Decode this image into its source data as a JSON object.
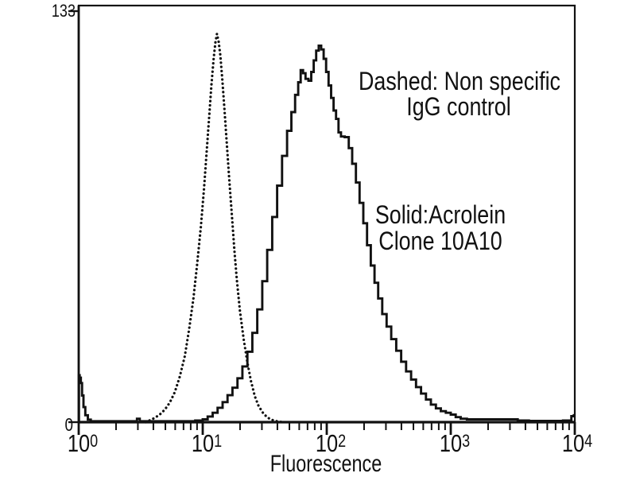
{
  "figure": {
    "background": "#ffffff",
    "ink": "#111111"
  },
  "chart_data": {
    "type": "line",
    "subtype": "flow-cytometry-histogram",
    "title": "",
    "xlabel": "Fluorescence",
    "ylabel": "",
    "x_scale": "log10",
    "x_range_exponents": [
      0,
      4
    ],
    "ylim": [
      0,
      133
    ],
    "grid": false,
    "legend_position": "none",
    "y_ticks": [
      "133",
      "0"
    ],
    "x_ticks": [
      {
        "base": "10",
        "exp": "0"
      },
      {
        "base": "10",
        "exp": "1"
      },
      {
        "base": "10",
        "exp": "2"
      },
      {
        "base": "10",
        "exp": "3"
      },
      {
        "base": "10",
        "exp": "4"
      }
    ],
    "annotations": [
      {
        "id": "dashed-note",
        "lines": [
          "Dashed: Non specific",
          "IgG control"
        ]
      },
      {
        "id": "solid-note",
        "lines": [
          "Solid:Acrolein",
          "Clone 10A10"
        ]
      }
    ],
    "series": [
      {
        "name": "Non specific IgG control",
        "style": "dotted",
        "color": "#111111",
        "peak_x_log10": 1.115,
        "peak_count": 124,
        "points": [
          [
            0.54,
            0.0
          ],
          [
            0.575,
            0.6
          ],
          [
            0.615,
            1.4
          ],
          [
            0.655,
            2.5
          ],
          [
            0.695,
            4.0
          ],
          [
            0.735,
            6.3
          ],
          [
            0.775,
            9.6
          ],
          [
            0.815,
            14.5
          ],
          [
            0.855,
            21.0
          ],
          [
            0.89,
            29.5
          ],
          [
            0.925,
            39.5
          ],
          [
            0.955,
            50.5
          ],
          [
            0.985,
            62.5
          ],
          [
            1.01,
            74.5
          ],
          [
            1.032,
            86.5
          ],
          [
            1.052,
            97.5
          ],
          [
            1.07,
            107.5
          ],
          [
            1.088,
            116.0
          ],
          [
            1.103,
            121.5
          ],
          [
            1.115,
            124.0
          ],
          [
            1.128,
            121.5
          ],
          [
            1.142,
            117.0
          ],
          [
            1.158,
            109.5
          ],
          [
            1.175,
            100.0
          ],
          [
            1.195,
            88.5
          ],
          [
            1.215,
            77.0
          ],
          [
            1.235,
            66.0
          ],
          [
            1.255,
            55.0
          ],
          [
            1.275,
            45.5
          ],
          [
            1.3,
            35.5
          ],
          [
            1.33,
            26.5
          ],
          [
            1.36,
            19.0
          ],
          [
            1.39,
            13.0
          ],
          [
            1.42,
            8.3
          ],
          [
            1.45,
            5.2
          ],
          [
            1.485,
            3.0
          ],
          [
            1.52,
            1.5
          ],
          [
            1.56,
            0.7
          ],
          [
            1.605,
            0.2
          ],
          [
            1.65,
            0.0
          ]
        ]
      },
      {
        "name": "Acrolein Clone 10A10",
        "style": "solid",
        "color": "#111111",
        "peak_x_log10": 1.945,
        "peak_count": 120,
        "points": [
          [
            0.0,
            0.0
          ],
          [
            0.004,
            15.0
          ],
          [
            0.012,
            14.2
          ],
          [
            0.022,
            12.5
          ],
          [
            0.032,
            8.5
          ],
          [
            0.045,
            4.8
          ],
          [
            0.062,
            2.2
          ],
          [
            0.085,
            0.8
          ],
          [
            0.11,
            0.3
          ],
          [
            0.3,
            0.3
          ],
          [
            0.46,
            0.3
          ],
          [
            0.48,
            1.1
          ],
          [
            0.505,
            0.3
          ],
          [
            0.9,
            0.3
          ],
          [
            0.98,
            0.5
          ],
          [
            1.02,
            0.9
          ],
          [
            1.06,
            1.8
          ],
          [
            1.1,
            3.0
          ],
          [
            1.14,
            4.6
          ],
          [
            1.18,
            6.4
          ],
          [
            1.22,
            8.6
          ],
          [
            1.26,
            11.0
          ],
          [
            1.3,
            14.0
          ],
          [
            1.34,
            17.8
          ],
          [
            1.38,
            22.5
          ],
          [
            1.42,
            28.5
          ],
          [
            1.46,
            36.0
          ],
          [
            1.5,
            45.0
          ],
          [
            1.54,
            55.0
          ],
          [
            1.58,
            65.5
          ],
          [
            1.62,
            75.5
          ],
          [
            1.66,
            85.0
          ],
          [
            1.7,
            93.0
          ],
          [
            1.73,
            99.0
          ],
          [
            1.76,
            104.5
          ],
          [
            1.78,
            108.5
          ],
          [
            1.8,
            112.4
          ],
          [
            1.818,
            111.4
          ],
          [
            1.84,
            109.6
          ],
          [
            1.865,
            109.0
          ],
          [
            1.885,
            111.8
          ],
          [
            1.905,
            115.5
          ],
          [
            1.925,
            118.6
          ],
          [
            1.945,
            120.2
          ],
          [
            1.965,
            119.0
          ],
          [
            1.985,
            116.0
          ],
          [
            2.005,
            111.8
          ],
          [
            2.025,
            107.5
          ],
          [
            2.045,
            103.5
          ],
          [
            2.065,
            99.5
          ],
          [
            2.085,
            96.8
          ],
          [
            2.105,
            92.5
          ],
          [
            2.125,
            91.2
          ],
          [
            2.165,
            91.0
          ],
          [
            2.19,
            87.5
          ],
          [
            2.22,
            82.5
          ],
          [
            2.25,
            76.5
          ],
          [
            2.28,
            70.0
          ],
          [
            2.31,
            63.5
          ],
          [
            2.34,
            56.5
          ],
          [
            2.37,
            50.0
          ],
          [
            2.4,
            44.5
          ],
          [
            2.43,
            39.5
          ],
          [
            2.465,
            34.5
          ],
          [
            2.5,
            30.5
          ],
          [
            2.54,
            26.5
          ],
          [
            2.58,
            22.8
          ],
          [
            2.62,
            19.3
          ],
          [
            2.66,
            16.2
          ],
          [
            2.7,
            13.6
          ],
          [
            2.74,
            11.2
          ],
          [
            2.78,
            9.1
          ],
          [
            2.82,
            7.2
          ],
          [
            2.86,
            5.6
          ],
          [
            2.9,
            4.4
          ],
          [
            2.94,
            3.5
          ],
          [
            2.98,
            3.0
          ],
          [
            3.02,
            2.4
          ],
          [
            3.06,
            1.6
          ],
          [
            3.1,
            1.1
          ],
          [
            3.16,
            0.9
          ],
          [
            3.35,
            0.9
          ],
          [
            3.52,
            0.9
          ],
          [
            3.56,
            0.5
          ],
          [
            3.7,
            0.4
          ],
          [
            3.85,
            0.4
          ],
          [
            3.96,
            0.5
          ],
          [
            3.985,
            1.9
          ],
          [
            4.0,
            2.2
          ]
        ]
      }
    ]
  }
}
